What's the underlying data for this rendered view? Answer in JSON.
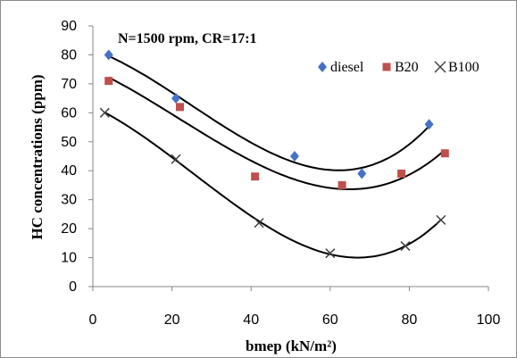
{
  "chart_data": {
    "type": "scatter",
    "annotation": "N=1500 rpm, CR=17:1",
    "xlabel": "bmep (kN/m²)",
    "ylabel": "HC concentrations (ppm)",
    "xlim": [
      0,
      100
    ],
    "ylim": [
      0,
      90
    ],
    "xticks": [
      0,
      20,
      40,
      60,
      80,
      100
    ],
    "yticks": [
      0,
      10,
      20,
      30,
      40,
      50,
      60,
      70,
      80,
      90
    ],
    "grid": false,
    "legend_position": "top-right",
    "trendlines": "polynomial",
    "series": [
      {
        "name": "diesel",
        "marker": "diamond",
        "color": "#4472C4",
        "x": [
          4,
          21,
          51,
          68,
          85
        ],
        "y": [
          80,
          65,
          45,
          39,
          56
        ]
      },
      {
        "name": "B20",
        "marker": "square",
        "color": "#C0504D",
        "x": [
          4,
          22,
          41,
          63,
          78,
          89
        ],
        "y": [
          71,
          62,
          38,
          35,
          39,
          46
        ]
      },
      {
        "name": "B100",
        "marker": "x",
        "color": "#404040",
        "x": [
          3,
          21,
          42,
          60,
          79,
          88
        ],
        "y": [
          60,
          44,
          22,
          11.5,
          14,
          23
        ]
      }
    ]
  }
}
